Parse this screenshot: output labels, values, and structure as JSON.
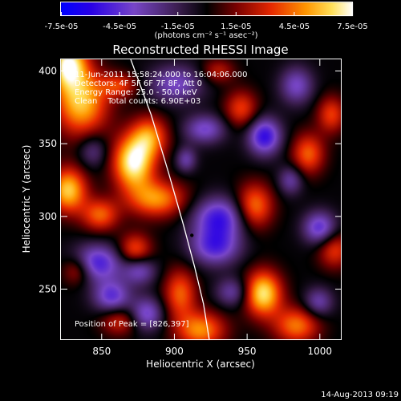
{
  "chart_data": {
    "type": "heatmap",
    "title": "Reconstructed RHESSI Image",
    "xlabel": "Heliocentric X (arcsec)",
    "ylabel": "Heliocentric Y (arcsec)",
    "xlim": [
      822,
      1015
    ],
    "ylim": [
      215,
      408
    ],
    "x_ticks": [
      850,
      900,
      950,
      1000
    ],
    "y_ticks": [
      250,
      300,
      350,
      400
    ],
    "colorbar": {
      "label": "(photons cm⁻² s⁻¹ asec⁻²)",
      "min": -7.5e-05,
      "max": 7.5e-05,
      "tick_values": [
        -7.5e-05,
        -4.5e-05,
        -1.5e-05,
        1.5e-05,
        4.5e-05,
        7.5e-05
      ],
      "tick_labels": [
        "-7.5e-05",
        "-4.5e-05",
        "-1.5e-05",
        "1.5e-05",
        "4.5e-05",
        "7.5e-05"
      ]
    },
    "info_lines": [
      "11-Jun-2011 15:58:24.000 to 16:04:06.000",
      "Detectors: 4F 5F 6F 7F 8F, Att 0",
      "Energy Range: 25.0 - 50.0 keV",
      "Clean    Total counts: 6.90E+03"
    ],
    "peak_label": "Position of Peak = [826,397]",
    "peak_position": [
      826,
      397
    ],
    "marker_point": [
      912,
      287
    ],
    "limb": [
      [
        870,
        408
      ],
      [
        884,
        370
      ],
      [
        896,
        330
      ],
      [
        906,
        295
      ],
      [
        914,
        265
      ],
      [
        920,
        240
      ],
      [
        924,
        215
      ]
    ],
    "blobs": [
      {
        "x": 827,
        "y": 405,
        "sx": 9,
        "sy": 12,
        "a": 7e-05
      },
      {
        "x": 836,
        "y": 378,
        "sx": 13,
        "sy": 16,
        "a": 6e-05
      },
      {
        "x": 872,
        "y": 337,
        "sx": 10,
        "sy": 13,
        "a": 7.4e-05
      },
      {
        "x": 883,
        "y": 355,
        "sx": 9,
        "sy": 10,
        "a": 4.5e-05
      },
      {
        "x": 827,
        "y": 318,
        "sx": 9,
        "sy": 11,
        "a": 6.2e-05
      },
      {
        "x": 849,
        "y": 301,
        "sx": 9,
        "sy": 8,
        "a": 4.2e-05
      },
      {
        "x": 888,
        "y": 312,
        "sx": 14,
        "sy": 9,
        "a": 5e-05
      },
      {
        "x": 873,
        "y": 277,
        "sx": 8,
        "sy": 8,
        "a": 4e-05
      },
      {
        "x": 833,
        "y": 263,
        "sx": 7,
        "sy": 7,
        "a": 3.2e-05
      },
      {
        "x": 904,
        "y": 247,
        "sx": 8,
        "sy": 12,
        "a": 4.2e-05
      },
      {
        "x": 918,
        "y": 222,
        "sx": 12,
        "sy": 9,
        "a": 5e-05
      },
      {
        "x": 946,
        "y": 374,
        "sx": 8,
        "sy": 9,
        "a": 3.6e-05
      },
      {
        "x": 955,
        "y": 307,
        "sx": 9,
        "sy": 11,
        "a": 4.8e-05
      },
      {
        "x": 961,
        "y": 247,
        "sx": 9,
        "sy": 11,
        "a": 6.8e-05
      },
      {
        "x": 984,
        "y": 225,
        "sx": 11,
        "sy": 9,
        "a": 4.6e-05
      },
      {
        "x": 992,
        "y": 343,
        "sx": 8,
        "sy": 10,
        "a": 4.2e-05
      },
      {
        "x": 1008,
        "y": 370,
        "sx": 7,
        "sy": 9,
        "a": 3.6e-05
      },
      {
        "x": 1010,
        "y": 277,
        "sx": 8,
        "sy": 9,
        "a": 3.5e-05
      },
      {
        "x": 862,
        "y": 228,
        "sx": 9,
        "sy": 7,
        "a": 3e-05
      },
      {
        "x": 862,
        "y": 390,
        "sx": 9,
        "sy": 6,
        "a": 3.2e-05
      },
      {
        "x": 930,
        "y": 400,
        "sx": 8,
        "sy": 6,
        "a": 2.6e-05
      },
      {
        "x": 847,
        "y": 268,
        "sx": 12,
        "sy": 9,
        "a": -5e-05
      },
      {
        "x": 857,
        "y": 245,
        "sx": 9,
        "sy": 8,
        "a": -4.4e-05
      },
      {
        "x": 931,
        "y": 299,
        "sx": 13,
        "sy": 10,
        "a": -5.2e-05
      },
      {
        "x": 928,
        "y": 279,
        "sx": 12,
        "sy": 9,
        "a": -4.6e-05
      },
      {
        "x": 962,
        "y": 355,
        "sx": 8,
        "sy": 9,
        "a": -5.6e-05
      },
      {
        "x": 921,
        "y": 360,
        "sx": 10,
        "sy": 7,
        "a": -3.8e-05
      },
      {
        "x": 901,
        "y": 391,
        "sx": 13,
        "sy": 9,
        "a": -3.6e-05
      },
      {
        "x": 1000,
        "y": 292,
        "sx": 8,
        "sy": 8,
        "a": -4.6e-05
      },
      {
        "x": 876,
        "y": 263,
        "sx": 8,
        "sy": 7,
        "a": -3.6e-05
      },
      {
        "x": 881,
        "y": 233,
        "sx": 8,
        "sy": 8,
        "a": -4e-05
      },
      {
        "x": 984,
        "y": 390,
        "sx": 8,
        "sy": 9,
        "a": -3.6e-05
      },
      {
        "x": 999,
        "y": 241,
        "sx": 7,
        "sy": 7,
        "a": -3.2e-05
      },
      {
        "x": 940,
        "y": 248,
        "sx": 8,
        "sy": 7,
        "a": -3e-05
      },
      {
        "x": 844,
        "y": 345,
        "sx": 7,
        "sy": 8,
        "a": -2.5e-05
      },
      {
        "x": 980,
        "y": 325,
        "sx": 6,
        "sy": 7,
        "a": -3e-05
      },
      {
        "x": 908,
        "y": 339,
        "sx": 5,
        "sy": 6,
        "a": -3e-05
      }
    ],
    "background": -1e-06,
    "grid": false,
    "colors": {
      "low": "#0000ff",
      "mid": "#000000",
      "high": "#ffffff",
      "limb": "#ffffff",
      "marker": "#000000"
    }
  },
  "footer": {
    "timestamp": "14-Aug-2013 09:19"
  }
}
